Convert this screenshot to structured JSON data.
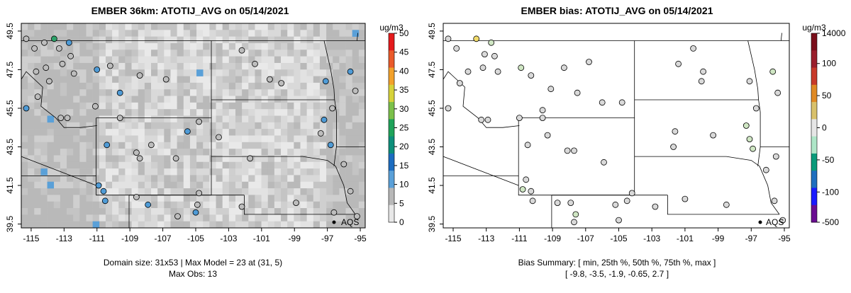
{
  "left_panel": {
    "title": "EMBER 36km: ATOTIJ_AVG on 05/14/2021",
    "xticks": [
      "-115",
      "-113",
      "-111",
      "-109",
      "-107",
      "-105",
      "-103",
      "-101",
      "-99",
      "-97",
      "-95"
    ],
    "yticks": [
      "49.5",
      "47.5",
      "45.5",
      "43.5",
      "41.5",
      "39.5"
    ],
    "colorbar_unit": "ug/m3",
    "colorbar_ticks": [
      "50",
      "45",
      "40",
      "35",
      "30",
      "25",
      "20",
      "15",
      "10",
      "5",
      "0"
    ],
    "site_label": "AQS",
    "footer_line1": "Domain size: 31x53 | Max Model = 23 at (31, 5)",
    "footer_line2": "Max Obs: 13"
  },
  "right_panel": {
    "title": "EMBER bias: ATOTIJ_AVG on 05/14/2021",
    "xticks": [
      "-115",
      "-113",
      "-111",
      "-109",
      "-107",
      "-105",
      "-103",
      "-101",
      "-99",
      "-97",
      "-95"
    ],
    "yticks": [
      "49.5",
      "47.5",
      "45.5",
      "43.5",
      "41.5",
      "39.5"
    ],
    "colorbar_unit": "ug/m3",
    "colorbar_ticks": [
      "14000",
      "100",
      "50",
      "0",
      "-50",
      "-100",
      "-500"
    ],
    "site_label": "AQS",
    "footer_line1": "Bias Summary: [ min, 25th %, 50th %, 75th %, max ]",
    "footer_line2": "[ -9.8,   -3.5,   -1.9,   -0.65,   2.7 ]"
  },
  "map_extent": {
    "lon": [
      -115.6,
      -94.7
    ],
    "lat": [
      39.3,
      49.9
    ]
  },
  "colors": {
    "frame": "#000000",
    "obs_gray": "#bdbdbd",
    "obs_blue": "#4f9bd6",
    "obs_green": "#2ea36b",
    "bias_gray": "#d9d9d9",
    "bias_light_green": "#cfe6c3",
    "bias_yellow": "#f2dc6b"
  },
  "left_colorbar_colors": [
    "#e8e8e8",
    "#b8b8b8",
    "#5aa0d8",
    "#1c6cc0",
    "#0d8f7a",
    "#1fa35a",
    "#7bc04a",
    "#d6d23a",
    "#f2a12b",
    "#ea5a2a",
    "#e41a1c"
  ],
  "right_colorbar_colors": [
    "#6a0d91",
    "#1a1aff",
    "#1f6fbf",
    "#0a9a7a",
    "#aee6c8",
    "#e6e6e6",
    "#d9c16b",
    "#e08a24",
    "#c83a2a",
    "#9a1f2c",
    "#7a0e1a"
  ],
  "left_stations": [
    {
      "lon": -115.3,
      "lat": 49.1,
      "c": "obs_gray"
    },
    {
      "lon": -114.8,
      "lat": 48.6,
      "c": "obs_gray"
    },
    {
      "lon": -114.2,
      "lat": 48.9,
      "c": "obs_gray"
    },
    {
      "lon": -113.6,
      "lat": 49.1,
      "c": "obs_green"
    },
    {
      "lon": -113.3,
      "lat": 48.6,
      "c": "obs_gray"
    },
    {
      "lon": -112.7,
      "lat": 48.9,
      "c": "obs_blue"
    },
    {
      "lon": -112.6,
      "lat": 48.2,
      "c": "obs_gray"
    },
    {
      "lon": -113.1,
      "lat": 47.8,
      "c": "obs_gray"
    },
    {
      "lon": -114.1,
      "lat": 47.6,
      "c": "obs_gray"
    },
    {
      "lon": -114.7,
      "lat": 47.4,
      "c": "obs_gray"
    },
    {
      "lon": -113.9,
      "lat": 46.9,
      "c": "obs_gray"
    },
    {
      "lon": -112.4,
      "lat": 47.3,
      "c": "obs_gray"
    },
    {
      "lon": -111.0,
      "lat": 47.5,
      "c": "obs_blue"
    },
    {
      "lon": -110.2,
      "lat": 47.7,
      "c": "obs_gray"
    },
    {
      "lon": -108.4,
      "lat": 47.2,
      "c": "obs_gray"
    },
    {
      "lon": -106.8,
      "lat": 47.0,
      "c": "obs_gray"
    },
    {
      "lon": -115.3,
      "lat": 45.5,
      "c": "obs_blue"
    },
    {
      "lon": -114.6,
      "lat": 46.1,
      "c": "obs_gray"
    },
    {
      "lon": -112.8,
      "lat": 45.0,
      "c": "obs_gray"
    },
    {
      "lon": -113.2,
      "lat": 45.0,
      "c": "obs_gray"
    },
    {
      "lon": -111.1,
      "lat": 45.6,
      "c": "obs_gray"
    },
    {
      "lon": -109.6,
      "lat": 46.3,
      "c": "obs_blue"
    },
    {
      "lon": -109.6,
      "lat": 45.0,
      "c": "obs_gray"
    },
    {
      "lon": -110.4,
      "lat": 43.6,
      "c": "obs_blue"
    },
    {
      "lon": -108.6,
      "lat": 43.2,
      "c": "obs_gray"
    },
    {
      "lon": -107.7,
      "lat": 43.6,
      "c": "obs_gray"
    },
    {
      "lon": -105.5,
      "lat": 44.3,
      "c": "obs_blue"
    },
    {
      "lon": -106.2,
      "lat": 42.9,
      "c": "obs_gray"
    },
    {
      "lon": -104.8,
      "lat": 44.8,
      "c": "obs_gray"
    },
    {
      "lon": -103.6,
      "lat": 44.0,
      "c": "obs_gray"
    },
    {
      "lon": -101.4,
      "lat": 47.8,
      "c": "obs_gray"
    },
    {
      "lon": -100.5,
      "lat": 47.0,
      "c": "obs_gray"
    },
    {
      "lon": -102.2,
      "lat": 48.5,
      "c": "obs_gray"
    },
    {
      "lon": -99.8,
      "lat": 46.8,
      "c": "obs_gray"
    },
    {
      "lon": -97.1,
      "lat": 46.9,
      "c": "obs_blue"
    },
    {
      "lon": -95.6,
      "lat": 47.4,
      "c": "obs_blue"
    },
    {
      "lon": -96.7,
      "lat": 45.5,
      "c": "obs_gray"
    },
    {
      "lon": -97.2,
      "lat": 44.9,
      "c": "obs_blue"
    },
    {
      "lon": -96.8,
      "lat": 43.6,
      "c": "obs_blue"
    },
    {
      "lon": -96.0,
      "lat": 42.6,
      "c": "obs_gray"
    },
    {
      "lon": -97.4,
      "lat": 44.2,
      "c": "obs_gray"
    },
    {
      "lon": -101.7,
      "lat": 42.9,
      "c": "obs_gray"
    },
    {
      "lon": -104.8,
      "lat": 41.1,
      "c": "obs_gray"
    },
    {
      "lon": -104.9,
      "lat": 40.5,
      "c": "obs_gray"
    },
    {
      "lon": -108.4,
      "lat": 42.9,
      "c": "obs_gray"
    },
    {
      "lon": -110.9,
      "lat": 41.5,
      "c": "obs_blue"
    },
    {
      "lon": -110.6,
      "lat": 41.2,
      "c": "obs_blue"
    },
    {
      "lon": -110.5,
      "lat": 40.7,
      "c": "obs_blue"
    },
    {
      "lon": -108.6,
      "lat": 40.9,
      "c": "obs_gray"
    },
    {
      "lon": -107.9,
      "lat": 40.5,
      "c": "obs_blue"
    },
    {
      "lon": -106.1,
      "lat": 39.9,
      "c": "obs_gray"
    },
    {
      "lon": -105.0,
      "lat": 40.1,
      "c": "obs_blue"
    },
    {
      "lon": -102.2,
      "lat": 40.4,
      "c": "obs_gray"
    },
    {
      "lon": -98.9,
      "lat": 40.6,
      "c": "obs_gray"
    },
    {
      "lon": -96.6,
      "lat": 40.1,
      "c": "obs_gray"
    },
    {
      "lon": -95.6,
      "lat": 41.2,
      "c": "obs_gray"
    },
    {
      "lon": -95.2,
      "lat": 39.9,
      "c": "obs_gray"
    },
    {
      "lon": -95.3,
      "lat": 46.4,
      "c": "obs_gray"
    }
  ],
  "right_stations": [
    {
      "lon": -115.3,
      "lat": 49.1,
      "c": "bias_gray"
    },
    {
      "lon": -114.8,
      "lat": 48.6,
      "c": "bias_gray"
    },
    {
      "lon": -113.6,
      "lat": 49.1,
      "c": "bias_yellow"
    },
    {
      "lon": -113.1,
      "lat": 48.3,
      "c": "bias_gray"
    },
    {
      "lon": -112.7,
      "lat": 48.9,
      "c": "bias_light_green"
    },
    {
      "lon": -112.5,
      "lat": 48.2,
      "c": "bias_gray"
    },
    {
      "lon": -113.2,
      "lat": 47.6,
      "c": "bias_gray"
    },
    {
      "lon": -114.1,
      "lat": 47.4,
      "c": "bias_gray"
    },
    {
      "lon": -114.6,
      "lat": 46.8,
      "c": "bias_gray"
    },
    {
      "lon": -112.3,
      "lat": 47.4,
      "c": "bias_gray"
    },
    {
      "lon": -110.9,
      "lat": 47.6,
      "c": "bias_light_green"
    },
    {
      "lon": -110.3,
      "lat": 47.2,
      "c": "bias_gray"
    },
    {
      "lon": -108.3,
      "lat": 47.6,
      "c": "bias_gray"
    },
    {
      "lon": -106.8,
      "lat": 47.9,
      "c": "bias_gray"
    },
    {
      "lon": -109.1,
      "lat": 46.5,
      "c": "bias_gray"
    },
    {
      "lon": -107.5,
      "lat": 46.3,
      "c": "bias_gray"
    },
    {
      "lon": -115.3,
      "lat": 45.5,
      "c": "bias_gray"
    },
    {
      "lon": -112.9,
      "lat": 44.9,
      "c": "bias_gray"
    },
    {
      "lon": -113.3,
      "lat": 44.9,
      "c": "bias_gray"
    },
    {
      "lon": -111.0,
      "lat": 45.0,
      "c": "bias_gray"
    },
    {
      "lon": -109.6,
      "lat": 45.4,
      "c": "bias_gray"
    },
    {
      "lon": -109.6,
      "lat": 45.0,
      "c": "bias_gray"
    },
    {
      "lon": -110.5,
      "lat": 43.6,
      "c": "bias_gray"
    },
    {
      "lon": -109.3,
      "lat": 44.1,
      "c": "bias_gray"
    },
    {
      "lon": -108.1,
      "lat": 43.3,
      "c": "bias_gray"
    },
    {
      "lon": -107.7,
      "lat": 43.3,
      "c": "bias_gray"
    },
    {
      "lon": -106.0,
      "lat": 45.8,
      "c": "bias_gray"
    },
    {
      "lon": -104.8,
      "lat": 45.8,
      "c": "bias_gray"
    },
    {
      "lon": -105.9,
      "lat": 42.7,
      "c": "bias_gray"
    },
    {
      "lon": -101.4,
      "lat": 47.8,
      "c": "bias_gray"
    },
    {
      "lon": -100.5,
      "lat": 48.6,
      "c": "bias_gray"
    },
    {
      "lon": -99.9,
      "lat": 47.4,
      "c": "bias_gray"
    },
    {
      "lon": -100.0,
      "lat": 46.9,
      "c": "bias_gray"
    },
    {
      "lon": -97.1,
      "lat": 46.9,
      "c": "bias_gray"
    },
    {
      "lon": -95.7,
      "lat": 47.4,
      "c": "bias_light_green"
    },
    {
      "lon": -96.7,
      "lat": 45.5,
      "c": "bias_gray"
    },
    {
      "lon": -97.3,
      "lat": 44.6,
      "c": "bias_light_green"
    },
    {
      "lon": -97.1,
      "lat": 43.9,
      "c": "bias_light_green"
    },
    {
      "lon": -96.9,
      "lat": 43.4,
      "c": "bias_light_green"
    },
    {
      "lon": -96.1,
      "lat": 42.3,
      "c": "bias_gray"
    },
    {
      "lon": -101.6,
      "lat": 44.3,
      "c": "bias_gray"
    },
    {
      "lon": -99.3,
      "lat": 44.1,
      "c": "bias_gray"
    },
    {
      "lon": -101.7,
      "lat": 43.5,
      "c": "bias_gray"
    },
    {
      "lon": -95.5,
      "lat": 43.0,
      "c": "bias_gray"
    },
    {
      "lon": -110.6,
      "lat": 41.8,
      "c": "bias_gray"
    },
    {
      "lon": -110.8,
      "lat": 41.3,
      "c": "bias_light_green"
    },
    {
      "lon": -110.3,
      "lat": 41.2,
      "c": "bias_gray"
    },
    {
      "lon": -110.2,
      "lat": 40.7,
      "c": "bias_gray"
    },
    {
      "lon": -108.7,
      "lat": 40.6,
      "c": "bias_gray"
    },
    {
      "lon": -107.9,
      "lat": 40.6,
      "c": "bias_gray"
    },
    {
      "lon": -107.6,
      "lat": 40.0,
      "c": "bias_light_green"
    },
    {
      "lon": -107.7,
      "lat": 39.6,
      "c": "bias_gray"
    },
    {
      "lon": -105.2,
      "lat": 40.5,
      "c": "bias_gray"
    },
    {
      "lon": -104.5,
      "lat": 40.7,
      "c": "bias_gray"
    },
    {
      "lon": -104.2,
      "lat": 41.1,
      "c": "bias_gray"
    },
    {
      "lon": -105.0,
      "lat": 39.7,
      "c": "bias_gray"
    },
    {
      "lon": -102.8,
      "lat": 40.4,
      "c": "bias_gray"
    },
    {
      "lon": -101.0,
      "lat": 40.8,
      "c": "bias_gray"
    },
    {
      "lon": -98.5,
      "lat": 40.5,
      "c": "bias_gray"
    },
    {
      "lon": -95.6,
      "lat": 40.7,
      "c": "bias_gray"
    },
    {
      "lon": -95.1,
      "lat": 39.7,
      "c": "bias_gray"
    },
    {
      "lon": -95.4,
      "lat": 46.3,
      "c": "bias_gray"
    }
  ]
}
